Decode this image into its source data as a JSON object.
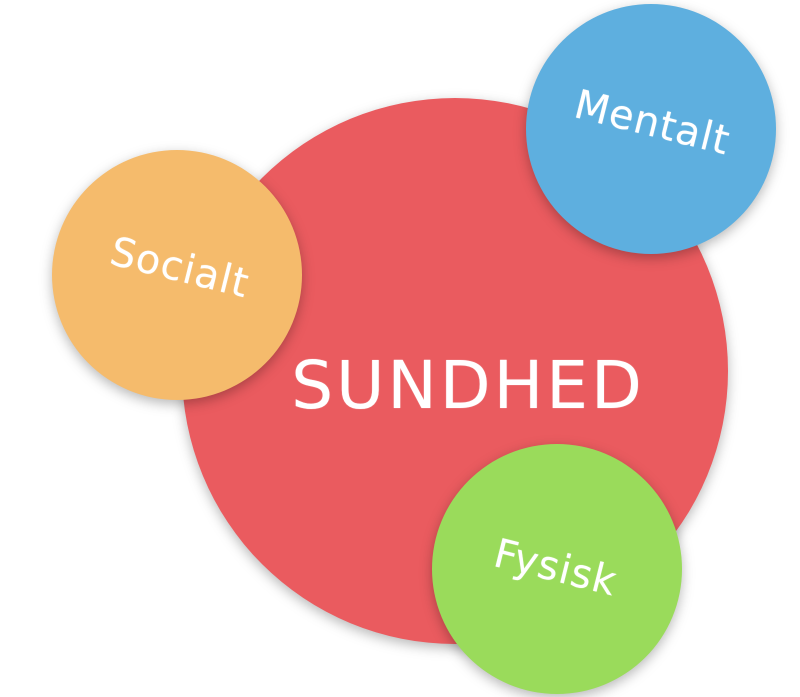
{
  "diagram": {
    "center": {
      "label": "SUNDHED",
      "color": "#ea5b5f"
    },
    "satellites": [
      {
        "label": "Socialt",
        "color": "#f5bb6c"
      },
      {
        "label": "Mentalt",
        "color": "#5eafdf"
      },
      {
        "label": "Fysisk",
        "color": "#9adb5b"
      }
    ]
  }
}
